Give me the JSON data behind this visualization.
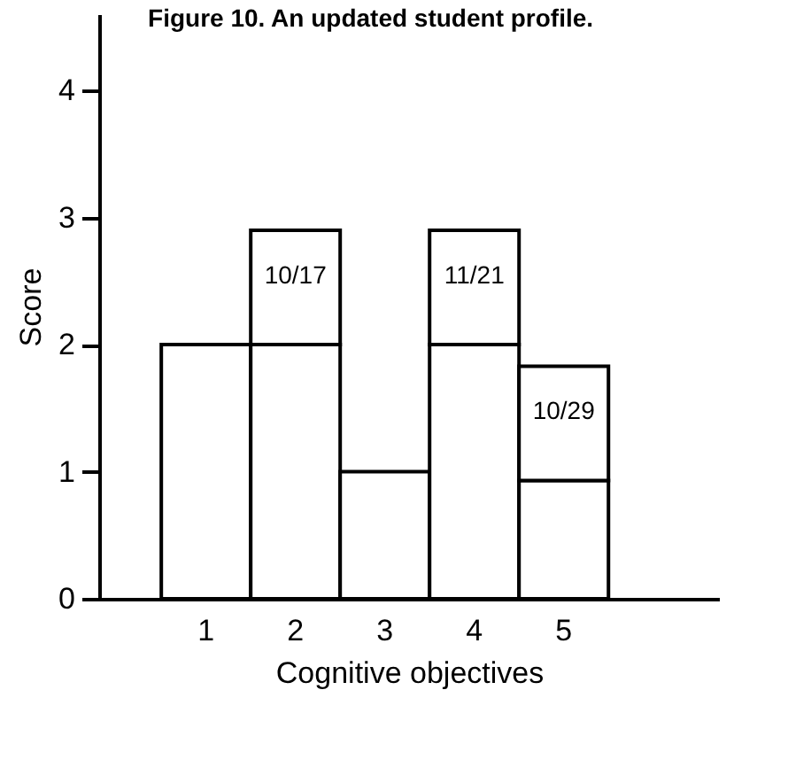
{
  "chart_data": {
    "type": "bar",
    "title": "Figure 10. An updated student profile.",
    "xlabel": "Cognitive objectives",
    "ylabel": "Score",
    "categories": [
      "1",
      "2",
      "3",
      "4",
      "5"
    ],
    "stacked": true,
    "series": [
      {
        "color": "#ffffff",
        "values": [
          2,
          2,
          1,
          2,
          0.93
        ]
      },
      {
        "color": "#ffffff",
        "values": [
          null,
          0.9,
          null,
          0.9,
          0.9
        ],
        "value_labels": [
          null,
          "10/17",
          null,
          "11/21",
          "10/29"
        ]
      }
    ],
    "ylim": [
      0,
      4.6
    ],
    "yticks": [
      0,
      1,
      2,
      3,
      4
    ],
    "grid": false
  }
}
